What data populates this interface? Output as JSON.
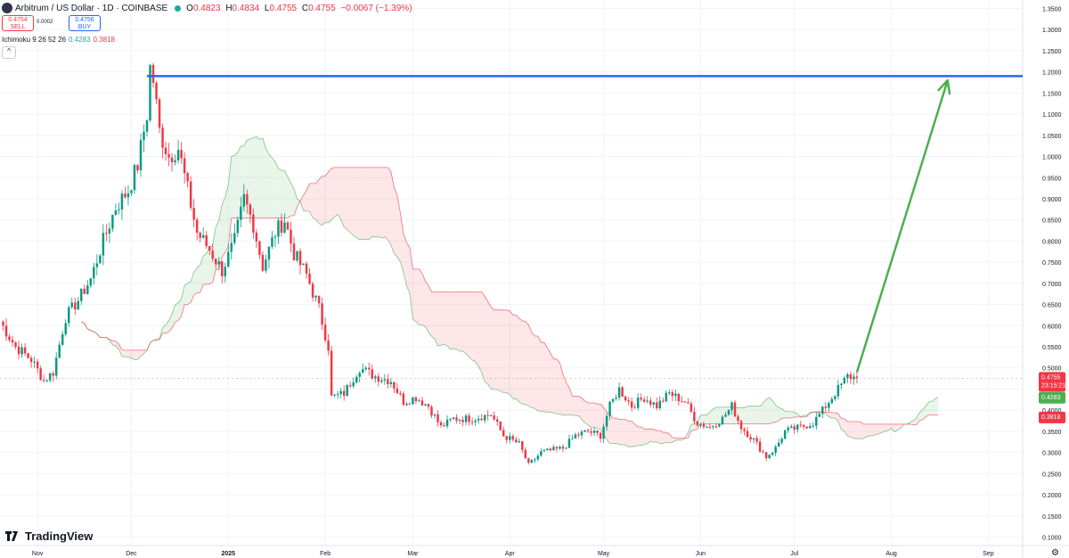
{
  "header": {
    "symbol": "Arbitrum / US Dollar · 1D · COINBASE",
    "o_label": "O",
    "o": "0.4823",
    "h_label": "H",
    "h": "0.4834",
    "l_label": "L",
    "l": "0.4755",
    "c_label": "C",
    "c": "0.4755",
    "change": "−0.0067 (−1.39%)"
  },
  "trade": {
    "sell_price": "0.4754",
    "sell_label": "SELL",
    "spread": "0.0002",
    "buy_price": "0.4756",
    "buy_label": "BUY"
  },
  "indicator": {
    "label": "Ichimoku 9 26 52 26",
    "v1": "0.4283",
    "v2": "0.3818"
  },
  "collapse_glyph": "^",
  "logo_text": "TradingView",
  "colors": {
    "up": "#089981",
    "down": "#f23645",
    "blue_line": "#2962ff",
    "arrow": "#4caf50",
    "cloud_green": "#4caf50",
    "cloud_red": "#f23645"
  },
  "chart_data": {
    "type": "candlestick",
    "ylim": [
      0.08,
      1.37
    ],
    "y_ticks": [
      "1.3500",
      "1.3000",
      "1.2500",
      "1.2000",
      "1.1500",
      "1.1000",
      "1.0500",
      "1.0000",
      "0.9500",
      "0.9000",
      "0.8500",
      "0.8000",
      "0.7500",
      "0.7000",
      "0.6500",
      "0.6000",
      "0.5500",
      "0.5000",
      "0.4500",
      "0.4000",
      "0.3500",
      "0.3000",
      "0.2500",
      "0.2000",
      "0.1500",
      "0.1000"
    ],
    "x_ticks": [
      {
        "label": "Nov",
        "date": "2024-11-01"
      },
      {
        "label": "Dec",
        "date": "2024-12-01"
      },
      {
        "label": "2025",
        "date": "2025-01-01"
      },
      {
        "label": "Feb",
        "date": "2025-02-01"
      },
      {
        "label": "Mar",
        "date": "2025-03-01"
      },
      {
        "label": "Apr",
        "date": "2025-04-01"
      },
      {
        "label": "May",
        "date": "2025-05-01"
      },
      {
        "label": "Jun",
        "date": "2025-06-01"
      },
      {
        "label": "Jul",
        "date": "2025-07-01"
      },
      {
        "label": "Aug",
        "date": "2025-08-01"
      },
      {
        "label": "Sep",
        "date": "2025-09-01"
      }
    ],
    "x_range": [
      "2024-10-20",
      "2025-09-12"
    ],
    "price_anchors": [
      [
        "2024-10-20",
        0.61
      ],
      [
        "2024-10-25",
        0.55
      ],
      [
        "2024-10-30",
        0.52
      ],
      [
        "2024-11-03",
        0.47
      ],
      [
        "2024-11-06",
        0.49
      ],
      [
        "2024-11-10",
        0.62
      ],
      [
        "2024-11-14",
        0.66
      ],
      [
        "2024-11-18",
        0.71
      ],
      [
        "2024-11-22",
        0.8
      ],
      [
        "2024-11-26",
        0.88
      ],
      [
        "2024-11-30",
        0.92
      ],
      [
        "2024-12-03",
        0.98
      ],
      [
        "2024-12-06",
        1.1
      ],
      [
        "2024-12-07",
        1.21
      ],
      [
        "2024-12-08",
        1.18
      ],
      [
        "2024-12-10",
        1.06
      ],
      [
        "2024-12-13",
        1.0
      ],
      [
        "2024-12-16",
        1.02
      ],
      [
        "2024-12-19",
        0.92
      ],
      [
        "2024-12-22",
        0.82
      ],
      [
        "2024-12-26",
        0.78
      ],
      [
        "2024-12-30",
        0.73
      ],
      [
        "2025-01-03",
        0.8
      ],
      [
        "2025-01-06",
        0.9
      ],
      [
        "2025-01-09",
        0.84
      ],
      [
        "2025-01-12",
        0.74
      ],
      [
        "2025-01-16",
        0.82
      ],
      [
        "2025-01-19",
        0.85
      ],
      [
        "2025-01-22",
        0.77
      ],
      [
        "2025-01-26",
        0.72
      ],
      [
        "2025-01-30",
        0.64
      ],
      [
        "2025-02-02",
        0.55
      ],
      [
        "2025-02-03",
        0.43
      ],
      [
        "2025-02-07",
        0.44
      ],
      [
        "2025-02-12",
        0.5
      ],
      [
        "2025-02-17",
        0.48
      ],
      [
        "2025-02-22",
        0.47
      ],
      [
        "2025-02-26",
        0.42
      ],
      [
        "2025-03-02",
        0.43
      ],
      [
        "2025-03-06",
        0.41
      ],
      [
        "2025-03-10",
        0.36
      ],
      [
        "2025-03-14",
        0.38
      ],
      [
        "2025-03-20",
        0.38
      ],
      [
        "2025-03-26",
        0.39
      ],
      [
        "2025-03-30",
        0.34
      ],
      [
        "2025-04-04",
        0.32
      ],
      [
        "2025-04-07",
        0.27
      ],
      [
        "2025-04-11",
        0.3
      ],
      [
        "2025-04-18",
        0.31
      ],
      [
        "2025-04-22",
        0.34
      ],
      [
        "2025-04-26",
        0.35
      ],
      [
        "2025-04-30",
        0.34
      ],
      [
        "2025-05-03",
        0.41
      ],
      [
        "2025-05-06",
        0.45
      ],
      [
        "2025-05-10",
        0.41
      ],
      [
        "2025-05-14",
        0.43
      ],
      [
        "2025-05-18",
        0.41
      ],
      [
        "2025-05-22",
        0.44
      ],
      [
        "2025-05-27",
        0.42
      ],
      [
        "2025-05-31",
        0.37
      ],
      [
        "2025-06-04",
        0.36
      ],
      [
        "2025-06-08",
        0.38
      ],
      [
        "2025-06-11",
        0.41
      ],
      [
        "2025-06-14",
        0.36
      ],
      [
        "2025-06-18",
        0.33
      ],
      [
        "2025-06-22",
        0.29
      ],
      [
        "2025-06-25",
        0.31
      ],
      [
        "2025-06-28",
        0.35
      ],
      [
        "2025-07-03",
        0.36
      ],
      [
        "2025-07-07",
        0.37
      ],
      [
        "2025-07-11",
        0.41
      ],
      [
        "2025-07-15",
        0.45
      ],
      [
        "2025-07-18",
        0.48
      ],
      [
        "2025-07-21",
        0.476
      ]
    ],
    "last_price": "0.4755",
    "countdown": "23:15:21",
    "cloud_a_label": "0.4283",
    "cloud_b_label": "0.3818",
    "annotations": {
      "horizontal_line": {
        "y": 1.19,
        "from": "2024-12-06",
        "to": "2025-09-12"
      },
      "arrow": {
        "from": [
          "2025-07-21",
          0.49
        ],
        "to": [
          "2025-08-19",
          1.18
        ]
      }
    }
  }
}
